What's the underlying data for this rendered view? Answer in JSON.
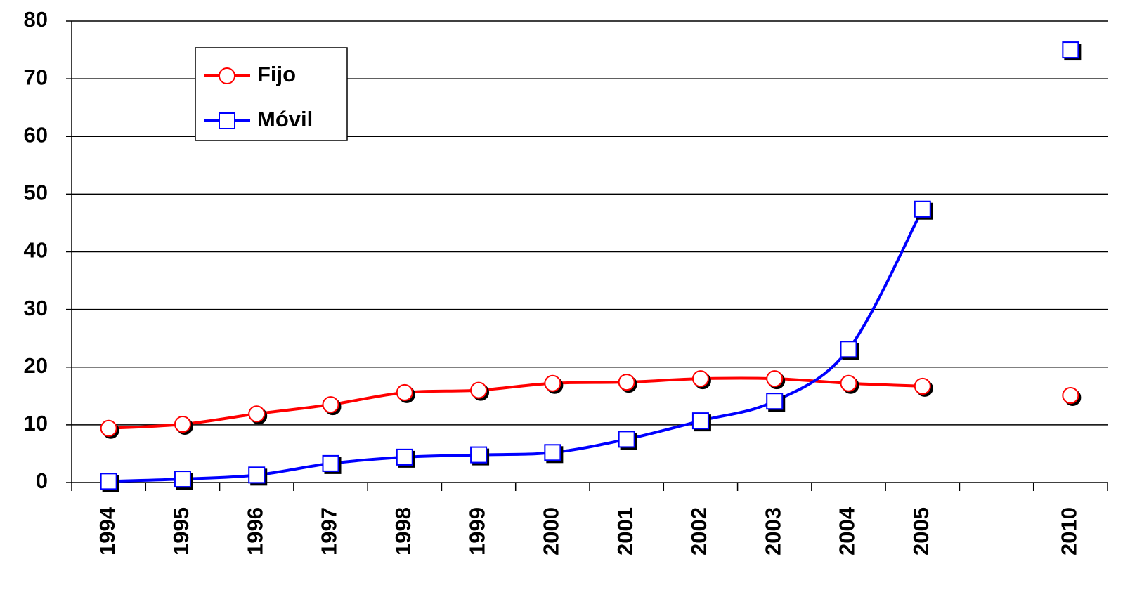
{
  "chart_data": {
    "type": "line",
    "smooth": true,
    "grid": true,
    "categories": [
      "1994",
      "1995",
      "1996",
      "1997",
      "1998",
      "1999",
      "2000",
      "2001",
      "2002",
      "2003",
      "2004",
      "2005",
      null,
      "2010"
    ],
    "series": [
      {
        "name": "Fijo",
        "color": "#ff0000",
        "marker": "circle",
        "values": [
          9.4,
          10.1,
          11.9,
          13.5,
          15.6,
          16.0,
          17.2,
          17.4,
          18.0,
          18.0,
          17.2,
          16.7,
          null,
          15.1
        ]
      },
      {
        "name": "Móvil",
        "color": "#0000ff",
        "marker": "square",
        "values": [
          0.2,
          0.6,
          1.3,
          3.3,
          4.4,
          4.8,
          5.2,
          7.5,
          10.7,
          14.1,
          23.1,
          47.4,
          null,
          75
        ]
      }
    ],
    "ylim": [
      0,
      80
    ],
    "yticks": [
      0,
      10,
      20,
      30,
      40,
      50,
      60,
      70,
      80
    ],
    "legend": "upper left"
  }
}
